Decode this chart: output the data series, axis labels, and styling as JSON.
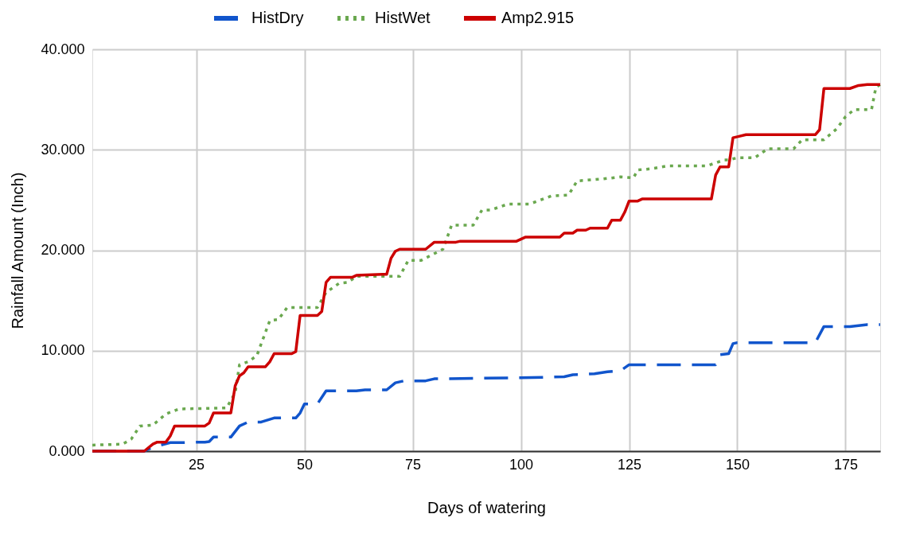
{
  "chart_data": {
    "type": "line",
    "xlabel": "Days of watering",
    "ylabel": "Rainfall Amount (Inch)",
    "xlim": [
      1,
      183
    ],
    "xticks": [
      25,
      50,
      75,
      100,
      125,
      150,
      175
    ],
    "ylim": [
      0,
      40
    ],
    "yticks": [
      {
        "value": 0,
        "label": "0.000"
      },
      {
        "value": 10,
        "label": "10.000"
      },
      {
        "value": 20,
        "label": "20.000"
      },
      {
        "value": 30,
        "label": "30.000"
      },
      {
        "value": 40,
        "label": "40.000"
      }
    ],
    "grid": true,
    "legend": "top",
    "series": [
      {
        "name": "HistDry",
        "color": "#1155cc",
        "line_style": "dashed",
        "x": [
          1,
          13,
          14,
          15,
          19,
          21,
          27,
          28,
          29,
          33,
          35,
          37,
          40,
          43,
          48,
          49,
          50,
          53,
          55,
          62,
          64,
          69,
          71,
          73,
          78,
          80,
          100,
          110,
          112,
          117,
          120,
          123,
          125,
          145,
          146,
          148,
          149,
          150,
          168,
          170,
          176,
          180,
          183
        ],
        "values": [
          0,
          0,
          0.2,
          0.4,
          0.85,
          0.85,
          0.9,
          0.95,
          1.4,
          1.4,
          2.5,
          2.9,
          2.9,
          3.3,
          3.3,
          3.8,
          4.7,
          4.7,
          6.0,
          6.0,
          6.1,
          6.1,
          6.8,
          7.0,
          7.0,
          7.2,
          7.3,
          7.4,
          7.6,
          7.7,
          7.9,
          8.0,
          8.6,
          8.6,
          9.6,
          9.7,
          10.7,
          10.8,
          10.8,
          12.4,
          12.4,
          12.6,
          12.6
        ]
      },
      {
        "name": "HistWet",
        "color": "#6aa84f",
        "line_style": "dotted",
        "x": [
          1,
          8,
          10,
          12,
          15,
          18,
          21,
          32,
          34,
          35,
          37,
          39,
          42,
          44,
          46,
          53,
          55,
          58,
          60,
          62,
          72,
          74,
          77,
          82,
          84,
          89,
          91,
          93,
          97,
          102,
          107,
          111,
          113,
          119,
          123,
          126,
          127,
          130,
          134,
          143,
          147,
          148,
          150,
          154,
          157,
          163,
          165,
          170,
          173,
          175,
          177,
          181,
          182,
          183
        ],
        "values": [
          0.6,
          0.7,
          1.2,
          2.5,
          2.6,
          3.7,
          4.2,
          4.3,
          5.8,
          8.6,
          8.9,
          9.5,
          13.0,
          13.1,
          14.3,
          14.3,
          15.8,
          16.7,
          16.8,
          17.4,
          17.4,
          19.0,
          19.0,
          20.1,
          22.5,
          22.5,
          24.0,
          24.0,
          24.6,
          24.6,
          25.4,
          25.5,
          26.9,
          27.1,
          27.3,
          27.2,
          28.0,
          28.1,
          28.4,
          28.4,
          29.0,
          29.0,
          29.2,
          29.2,
          30.1,
          30.1,
          31.0,
          31.0,
          32.1,
          33.3,
          34.0,
          34.0,
          36.2,
          36.5
        ]
      },
      {
        "name": "Amp2.915",
        "color": "#cc0000",
        "line_style": "solid",
        "x": [
          1,
          13,
          15,
          16,
          18,
          19,
          20,
          27,
          28,
          29,
          33,
          34,
          35,
          36,
          37,
          41,
          42,
          43,
          47,
          48,
          49,
          53,
          54,
          55,
          56,
          61,
          62,
          68,
          69,
          70,
          71,
          72,
          78,
          80,
          85,
          86,
          99,
          101,
          109,
          110,
          112,
          113,
          115,
          116,
          120,
          121,
          123,
          124,
          125,
          127,
          128,
          144,
          145,
          146,
          148,
          149,
          150,
          152,
          168,
          169,
          170,
          176,
          178,
          180,
          183
        ],
        "values": [
          0,
          0,
          0.7,
          0.9,
          0.9,
          1.5,
          2.5,
          2.5,
          2.8,
          3.8,
          3.8,
          6.5,
          7.5,
          7.8,
          8.4,
          8.4,
          8.9,
          9.7,
          9.7,
          9.9,
          13.5,
          13.5,
          13.9,
          16.8,
          17.3,
          17.3,
          17.5,
          17.6,
          17.6,
          19.2,
          19.9,
          20.1,
          20.1,
          20.8,
          20.8,
          20.9,
          20.9,
          21.3,
          21.3,
          21.7,
          21.7,
          22.0,
          22.0,
          22.2,
          22.2,
          23.0,
          23.0,
          23.8,
          24.9,
          24.9,
          25.1,
          25.1,
          27.5,
          28.3,
          28.3,
          31.2,
          31.3,
          31.5,
          31.5,
          32.0,
          36.1,
          36.1,
          36.4,
          36.5,
          36.5
        ]
      }
    ]
  }
}
